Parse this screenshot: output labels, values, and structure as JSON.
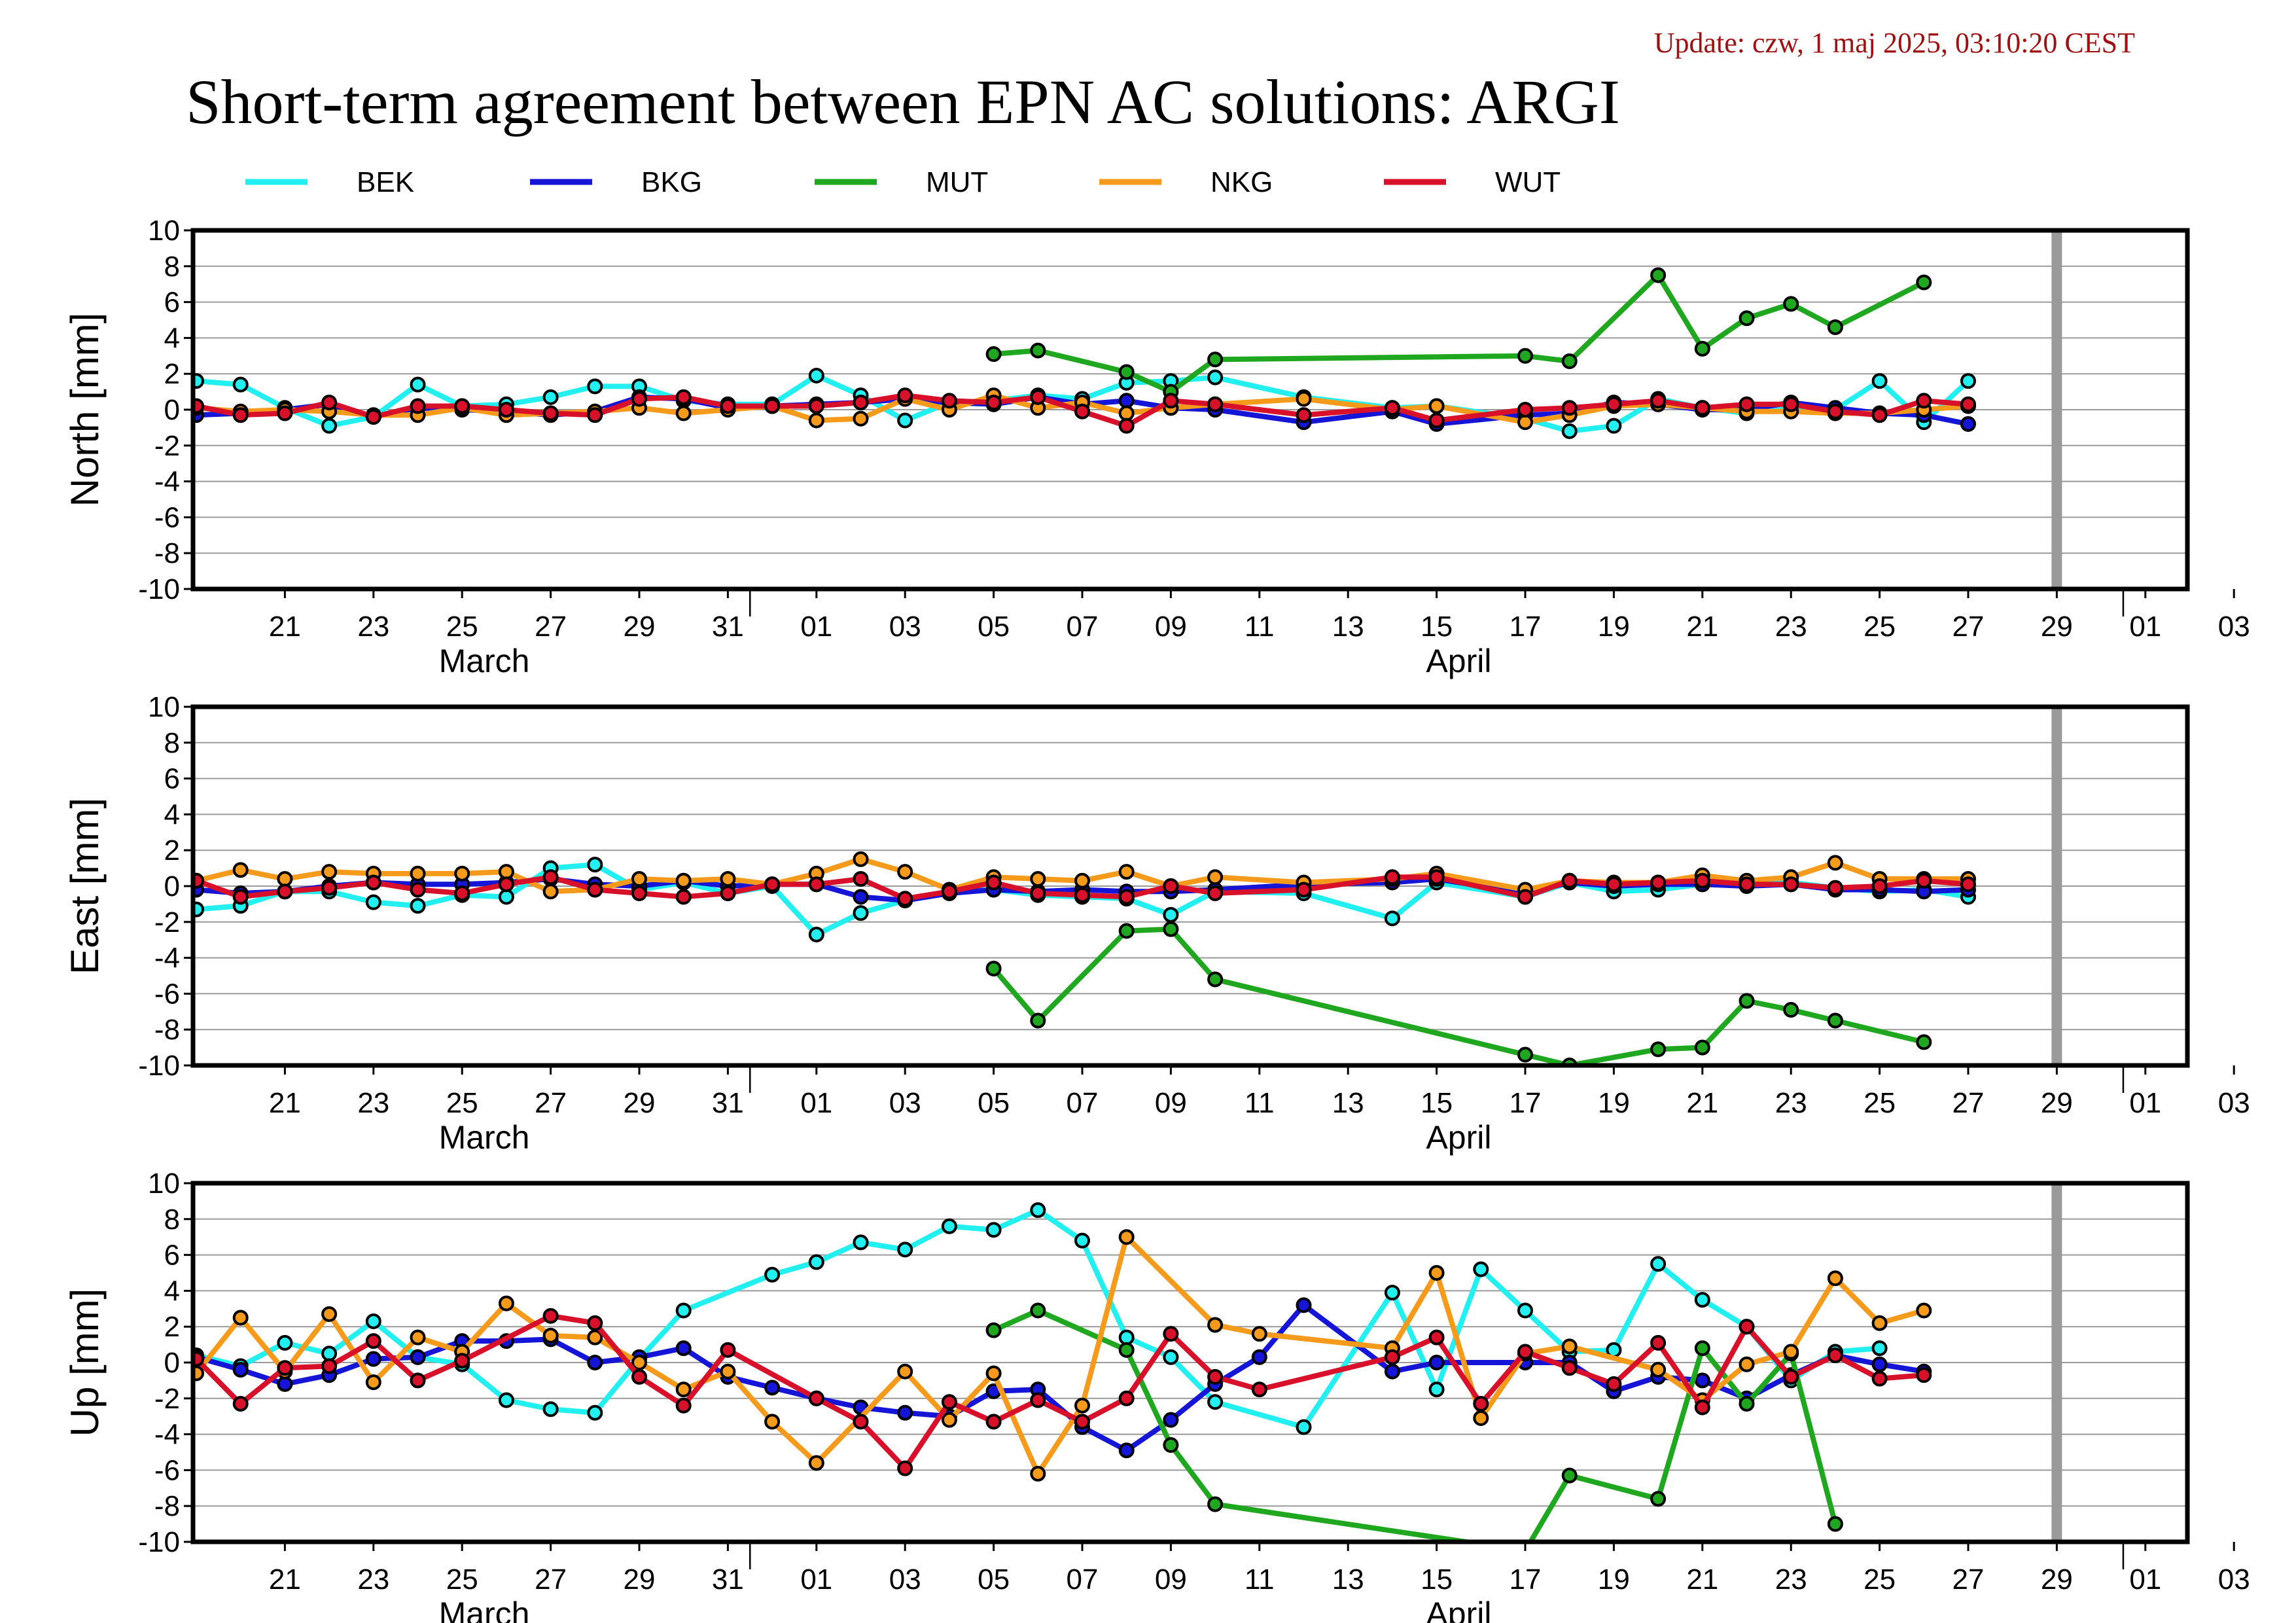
{
  "update_text": "Update: czw, 1 maj 2025, 03:10:20 CEST",
  "title": "Short-term agreement between EPN AC solutions: ARGI",
  "legend": [
    {
      "name": "BEK",
      "color": "#22f0f0"
    },
    {
      "name": "BKG",
      "color": "#1515d8"
    },
    {
      "name": "MUT",
      "color": "#1fa81f"
    },
    {
      "name": "NKG",
      "color": "#f59a1a"
    },
    {
      "name": "WUT",
      "color": "#d8102a"
    }
  ],
  "chart_data": {
    "type": "line",
    "x_tick_labels": [
      "21",
      "23",
      "25",
      "27",
      "29",
      "31",
      "01",
      "03",
      "05",
      "07",
      "09",
      "11",
      "13",
      "15",
      "17",
      "19",
      "21",
      "23",
      "25",
      "27",
      "29",
      "01",
      "03"
    ],
    "month_labels": [
      "March",
      "April"
    ],
    "x_range": [
      "2025-03-19",
      "2025-05-03"
    ],
    "ylim": [
      -10,
      10
    ],
    "y_ticks": [
      -10,
      -8,
      -6,
      -4,
      -2,
      0,
      2,
      4,
      6,
      8,
      10
    ],
    "today_marker": "2025-04-30",
    "panels": [
      {
        "ylabel": "North [mm]",
        "series": [
          {
            "name": "BEK",
            "values": [
              1.6,
              1.4,
              0.1,
              -0.9,
              -0.4,
              1.4,
              0.2,
              0.3,
              0.7,
              1.3,
              1.3,
              0.5,
              0.3,
              0.3,
              1.9,
              0.8,
              -0.6,
              0.4,
              0.5,
              0.8,
              0.6,
              1.5,
              1.6,
              1.8,
              null,
              0.7,
              null,
              0.1,
              0.2,
              null,
              -0.5,
              -1.2,
              -0.9,
              0.6,
              0.1,
              -0.2,
              0.2,
              0.0,
              1.6,
              -0.7,
              1.6
            ]
          },
          {
            "name": "BKG",
            "values": [
              -0.3,
              -0.2,
              0.0,
              0.3,
              -0.4,
              0.1,
              0.0,
              -0.1,
              -0.3,
              -0.1,
              0.7,
              0.6,
              0.1,
              0.2,
              0.3,
              0.4,
              0.6,
              0.4,
              0.3,
              0.7,
              0.3,
              0.5,
              0.1,
              0.0,
              null,
              -0.7,
              null,
              -0.1,
              -0.8,
              null,
              -0.3,
              -0.2,
              0.4,
              0.3,
              0.0,
              0.0,
              0.4,
              0.1,
              -0.2,
              -0.3,
              -0.8
            ]
          },
          {
            "name": "MUT",
            "values": [
              null,
              null,
              null,
              null,
              null,
              null,
              null,
              null,
              null,
              null,
              null,
              null,
              null,
              null,
              null,
              null,
              null,
              null,
              3.1,
              3.3,
              null,
              2.1,
              1.0,
              2.8,
              null,
              null,
              null,
              null,
              null,
              null,
              3.0,
              2.7,
              null,
              7.5,
              3.4,
              5.1,
              5.9,
              4.6,
              null,
              7.1,
              null
            ]
          },
          {
            "name": "NKG",
            "values": [
              0.1,
              -0.1,
              0.0,
              -0.1,
              -0.3,
              -0.3,
              0.1,
              -0.3,
              -0.2,
              -0.1,
              0.1,
              -0.2,
              0.0,
              0.2,
              -0.6,
              -0.5,
              0.6,
              0.0,
              0.8,
              0.1,
              0.4,
              -0.2,
              0.1,
              0.3,
              null,
              0.6,
              null,
              0.0,
              0.2,
              null,
              -0.7,
              -0.3,
              0.2,
              0.3,
              0.1,
              -0.1,
              -0.1,
              -0.2,
              -0.2,
              0.0,
              0.2
            ]
          },
          {
            "name": "WUT",
            "values": [
              0.2,
              -0.3,
              -0.2,
              0.4,
              -0.4,
              0.2,
              0.2,
              0.0,
              -0.2,
              -0.3,
              0.6,
              0.7,
              0.2,
              0.2,
              0.2,
              0.4,
              0.8,
              0.5,
              0.4,
              0.7,
              -0.1,
              -0.9,
              0.5,
              0.3,
              null,
              -0.3,
              null,
              0.1,
              -0.6,
              null,
              0.0,
              0.1,
              0.3,
              0.5,
              0.1,
              0.3,
              0.3,
              -0.1,
              -0.3,
              0.5,
              0.3
            ]
          }
        ]
      },
      {
        "ylabel": "East [mm]",
        "series": [
          {
            "name": "BEK",
            "values": [
              -1.3,
              -1.1,
              -0.3,
              -0.3,
              -0.9,
              -1.1,
              -0.5,
              -0.6,
              1.0,
              1.2,
              -0.2,
              0.2,
              -0.4,
              0.0,
              -2.7,
              -1.5,
              -0.8,
              -0.3,
              -0.2,
              -0.5,
              -0.6,
              -0.7,
              -1.6,
              -0.3,
              null,
              -0.4,
              null,
              -1.8,
              0.2,
              null,
              -0.6,
              0.2,
              -0.3,
              -0.2,
              0.1,
              0.1,
              0.2,
              -0.1,
              -0.3,
              -0.2,
              -0.6
            ]
          },
          {
            "name": "BKG",
            "values": [
              -0.2,
              -0.4,
              -0.3,
              0.0,
              0.2,
              0.1,
              0.1,
              0.2,
              0.4,
              0.1,
              0.0,
              0.3,
              0.0,
              0.1,
              0.1,
              -0.6,
              -0.8,
              -0.4,
              -0.2,
              -0.3,
              -0.2,
              -0.3,
              -0.3,
              -0.2,
              null,
              0.1,
              null,
              0.2,
              0.4,
              null,
              -0.4,
              0.2,
              0.0,
              0.1,
              0.1,
              0.0,
              0.1,
              -0.2,
              -0.2,
              -0.3,
              -0.2
            ]
          },
          {
            "name": "MUT",
            "values": [
              null,
              null,
              null,
              null,
              null,
              null,
              null,
              null,
              null,
              null,
              null,
              null,
              null,
              null,
              null,
              null,
              null,
              null,
              -4.6,
              -7.5,
              null,
              -2.5,
              -2.4,
              -5.2,
              null,
              null,
              null,
              null,
              null,
              null,
              -9.4,
              -10.0,
              null,
              -9.1,
              -9.0,
              -6.4,
              -6.9,
              -7.5,
              null,
              -8.7,
              null
            ]
          },
          {
            "name": "NKG",
            "values": [
              0.3,
              0.9,
              0.4,
              0.8,
              0.7,
              0.7,
              0.7,
              0.8,
              -0.3,
              -0.2,
              0.4,
              0.3,
              0.4,
              0.1,
              0.7,
              1.5,
              0.8,
              -0.2,
              0.5,
              0.4,
              0.3,
              0.8,
              0.0,
              0.5,
              null,
              0.2,
              null,
              0.4,
              0.7,
              null,
              -0.2,
              0.3,
              0.2,
              0.2,
              0.6,
              0.3,
              0.5,
              1.3,
              0.4,
              0.4,
              0.4
            ]
          },
          {
            "name": "WUT",
            "values": [
              0.3,
              -0.6,
              -0.3,
              -0.1,
              0.2,
              -0.2,
              -0.4,
              0.1,
              0.5,
              -0.2,
              -0.4,
              -0.6,
              -0.4,
              0.1,
              0.1,
              0.4,
              -0.7,
              -0.3,
              0.2,
              -0.4,
              -0.5,
              -0.6,
              0.0,
              -0.4,
              null,
              -0.2,
              null,
              0.5,
              0.5,
              null,
              -0.6,
              0.3,
              0.1,
              0.2,
              0.3,
              0.1,
              0.1,
              -0.1,
              0.0,
              0.3,
              0.1
            ]
          }
        ]
      },
      {
        "ylabel": "Up [mm]",
        "series": [
          {
            "name": "BEK",
            "values": [
              0.4,
              -0.2,
              1.1,
              0.5,
              2.3,
              0.3,
              -0.1,
              -2.1,
              -2.6,
              -2.8,
              0.2,
              2.9,
              null,
              4.9,
              5.6,
              6.7,
              6.3,
              7.6,
              7.4,
              8.5,
              6.8,
              1.4,
              0.3,
              -2.2,
              null,
              -3.6,
              null,
              3.9,
              -1.5,
              5.2,
              2.9,
              0.6,
              0.7,
              5.5,
              3.5,
              2.0,
              -1.0,
              0.6,
              0.8,
              null,
              null
            ]
          },
          {
            "name": "BKG",
            "values": [
              0.3,
              -0.4,
              -1.2,
              -0.7,
              0.2,
              0.3,
              1.2,
              1.2,
              1.3,
              0.0,
              0.3,
              0.8,
              -0.8,
              -1.4,
              -2.0,
              -2.5,
              -2.8,
              -3.0,
              -1.6,
              -1.5,
              -3.6,
              -4.9,
              -3.2,
              -1.2,
              0.3,
              3.2,
              null,
              -0.5,
              0.0,
              null,
              0.0,
              0.0,
              -1.6,
              -0.8,
              -1.0,
              -2.0,
              -0.7,
              0.4,
              -0.1,
              -0.5,
              null
            ]
          },
          {
            "name": "MUT",
            "values": [
              null,
              null,
              null,
              null,
              null,
              null,
              null,
              null,
              null,
              null,
              null,
              null,
              null,
              null,
              null,
              null,
              null,
              null,
              1.8,
              2.9,
              null,
              0.7,
              -4.6,
              -7.9,
              null,
              null,
              null,
              null,
              null,
              null,
              -10.5,
              -6.3,
              null,
              -7.6,
              0.8,
              -2.3,
              0.5,
              -9.0,
              null,
              null,
              null
            ]
          },
          {
            "name": "NKG",
            "values": [
              -0.6,
              2.5,
              -0.5,
              2.7,
              -1.1,
              1.4,
              0.6,
              3.3,
              1.5,
              1.4,
              0.0,
              -1.5,
              -0.5,
              -3.3,
              -5.6,
              null,
              -0.5,
              -3.2,
              -0.6,
              -6.2,
              -2.4,
              7.0,
              null,
              2.1,
              1.6,
              null,
              null,
              0.8,
              5.0,
              -3.1,
              0.5,
              0.9,
              null,
              -0.4,
              -2.1,
              -0.1,
              0.6,
              4.7,
              2.2,
              2.9,
              null
            ]
          },
          {
            "name": "WUT",
            "values": [
              0.2,
              -2.3,
              -0.3,
              -0.2,
              1.2,
              -1.0,
              0.1,
              null,
              2.6,
              2.2,
              -0.8,
              -2.4,
              0.7,
              null,
              -2.0,
              -3.3,
              -5.9,
              -2.2,
              -3.3,
              -2.1,
              -3.3,
              -2.0,
              1.6,
              -0.8,
              -1.5,
              null,
              null,
              0.3,
              1.4,
              -2.3,
              0.6,
              -0.3,
              -1.2,
              1.1,
              -2.5,
              2.0,
              -0.8,
              0.4,
              -0.9,
              -0.7,
              null
            ]
          }
        ]
      }
    ]
  }
}
